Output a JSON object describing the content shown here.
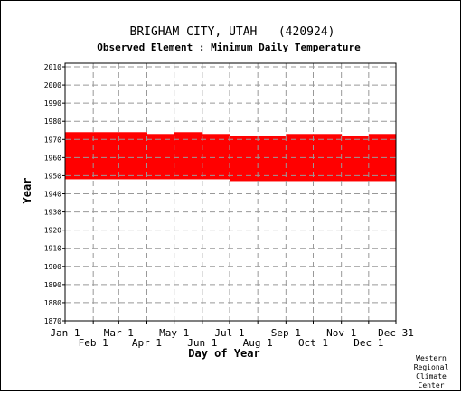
{
  "chart_data": {
    "type": "heatmap",
    "title": "BRIGHAM CITY, UTAH   (420924)",
    "subtitle": "Observed Element : Minimum Daily Temperature",
    "xlabel": "Day of Year",
    "ylabel": "Year",
    "xlim": [
      1,
      365
    ],
    "ylim": [
      1870,
      2012
    ],
    "y_ticks": [
      1870,
      1880,
      1890,
      1900,
      1910,
      1920,
      1930,
      1940,
      1950,
      1960,
      1970,
      1980,
      1990,
      2000,
      2010
    ],
    "x_ticks_top": [
      {
        "label": "Jan 1",
        "day": 1
      },
      {
        "label": "Mar 1",
        "day": 60
      },
      {
        "label": "May 1",
        "day": 121
      },
      {
        "label": "Jul 1",
        "day": 182
      },
      {
        "label": "Sep 1",
        "day": 244
      },
      {
        "label": "Nov 1",
        "day": 305
      },
      {
        "label": "Dec 31",
        "day": 365
      }
    ],
    "x_ticks_bottom": [
      {
        "label": "Feb 1",
        "day": 32
      },
      {
        "label": "Apr 1",
        "day": 91
      },
      {
        "label": "Jun 1",
        "day": 152
      },
      {
        "label": "Aug 1",
        "day": 213
      },
      {
        "label": "Oct 1",
        "day": 274
      },
      {
        "label": "Dec 1",
        "day": 335
      }
    ],
    "grid": true,
    "data_color": "#ff0000",
    "coverage": [
      {
        "day_start": 1,
        "day_end": 59,
        "year_start": 1948,
        "year_end": 1974
      },
      {
        "day_start": 59,
        "day_end": 91,
        "year_start": 1948,
        "year_end": 1974
      },
      {
        "day_start": 91,
        "day_end": 121,
        "year_start": 1948,
        "year_end": 1973
      },
      {
        "day_start": 121,
        "day_end": 152,
        "year_start": 1948,
        "year_end": 1974
      },
      {
        "day_start": 152,
        "day_end": 182,
        "year_start": 1948,
        "year_end": 1973
      },
      {
        "day_start": 182,
        "day_end": 213,
        "year_start": 1947,
        "year_end": 1972
      },
      {
        "day_start": 213,
        "day_end": 244,
        "year_start": 1947,
        "year_end": 1972
      },
      {
        "day_start": 244,
        "day_end": 274,
        "year_start": 1947,
        "year_end": 1973
      },
      {
        "day_start": 274,
        "day_end": 305,
        "year_start": 1947,
        "year_end": 1973
      },
      {
        "day_start": 305,
        "day_end": 335,
        "year_start": 1947,
        "year_end": 1972
      },
      {
        "day_start": 335,
        "day_end": 365,
        "year_start": 1947,
        "year_end": 1973
      }
    ]
  },
  "credit": [
    "Western",
    "Regional",
    "Climate",
    "Center"
  ]
}
